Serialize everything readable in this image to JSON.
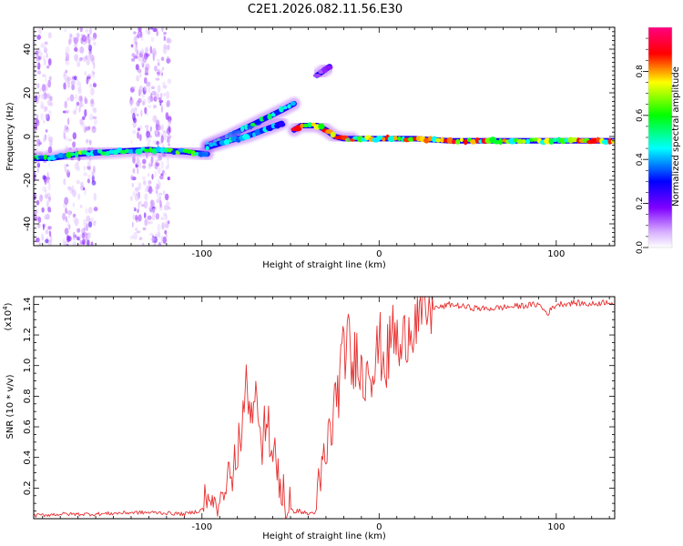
{
  "title": "C2E1.2026.082.11.56.E30",
  "chart_data": [
    {
      "type": "heatmap",
      "title": "C2E1.2026.082.11.56.E30",
      "xlabel": "Height of straight line (km)",
      "ylabel": "Frequency (Hz)",
      "xlim": [
        -195,
        133
      ],
      "ylim": [
        -50,
        50
      ],
      "x_ticks": [
        -100,
        0,
        100
      ],
      "y_ticks": [
        -40,
        -20,
        0,
        20,
        40
      ],
      "colorbar": {
        "label": "Normalized spectral amplitude",
        "range": [
          0,
          1
        ],
        "ticks": [
          "0.0",
          "0.2",
          "0.4",
          "0.6",
          "0.8"
        ],
        "tick_values": [
          0,
          0.2,
          0.4,
          0.6,
          0.8
        ],
        "colormap": [
          "#ffffff",
          "#8000ff",
          "#0000ff",
          "#00ffff",
          "#00ff00",
          "#ffff00",
          "#ff0000",
          "#ff0080"
        ]
      },
      "noise_bands_km": [
        [
          -195,
          -185
        ],
        [
          -178,
          -160
        ],
        [
          -140,
          -118
        ]
      ],
      "ridge_segments": [
        {
          "name": "horizontal-trace",
          "x": [
            -195,
            -185,
            -170,
            -150,
            -130,
            -110,
            -97
          ],
          "freq_hz": [
            -10,
            -10,
            -8,
            -7,
            -6,
            -7,
            -8
          ],
          "amplitude": 0.6
        },
        {
          "name": "upper-ascending-branch",
          "x": [
            -97,
            -85,
            -75,
            -65,
            -55,
            -48
          ],
          "freq_hz": [
            -4,
            0,
            4,
            8,
            12,
            15
          ],
          "amplitude": 0.5
        },
        {
          "name": "lower-ascending-branch",
          "x": [
            -97,
            -85,
            -75,
            -65,
            -55
          ],
          "freq_hz": [
            -5,
            -2,
            0,
            3,
            6
          ],
          "amplitude": 0.45
        },
        {
          "name": "faint-upper-streak",
          "x": [
            -35,
            -28
          ],
          "freq_hz": [
            28,
            32
          ],
          "amplitude": 0.15
        },
        {
          "name": "bump",
          "x": [
            -48,
            -44,
            -40,
            -35,
            -30,
            -25,
            -20,
            -15
          ],
          "freq_hz": [
            3,
            5,
            5,
            5,
            3,
            0,
            -1,
            -1
          ],
          "amplitude": 0.9
        },
        {
          "name": "flat-trace",
          "x": [
            -15,
            0,
            20,
            40,
            60,
            80,
            100,
            120,
            133
          ],
          "freq_hz": [
            -1,
            -1,
            -1,
            -2,
            -2,
            -2,
            -2,
            -2,
            -2
          ],
          "amplitude": 0.8
        }
      ]
    },
    {
      "type": "line",
      "xlabel": "Height of straight line (km)",
      "ylabel": "SNR (10 * v/v)",
      "y_multiplier_label": "(x10",
      "y_multiplier_exp": "4",
      "y_multiplier_close": ")",
      "xlim": [
        -195,
        133
      ],
      "ylim": [
        0,
        1.45
      ],
      "x_ticks": [
        -100,
        0,
        100
      ],
      "y_ticks": [
        0.2,
        0.4,
        0.6,
        0.8,
        1.0,
        1.2,
        1.4
      ],
      "y_tick_labels": [
        "0.2",
        "0.4",
        "0.6",
        "0.8",
        "1.0",
        "1.2",
        "1.4"
      ],
      "color": "#e83030",
      "series": [
        {
          "name": "SNR",
          "x": [
            -195,
            -180,
            -160,
            -140,
            -125,
            -110,
            -102,
            -95,
            -88,
            -82,
            -78,
            -75,
            -72,
            -69,
            -66,
            -63,
            -60,
            -57,
            -54,
            -50,
            -45,
            -40,
            -35,
            -33,
            -30,
            -27,
            -24,
            -21,
            -18,
            -15,
            -12,
            -9,
            -6,
            -3,
            0,
            4,
            8,
            12,
            16,
            20,
            25,
            30,
            35,
            40,
            50,
            60,
            70,
            80,
            90,
            95,
            100,
            110,
            120,
            130,
            133
          ],
          "y": [
            0.02,
            0.03,
            0.03,
            0.04,
            0.04,
            0.03,
            0.05,
            0.08,
            0.12,
            0.25,
            0.45,
            0.85,
            0.55,
            0.75,
            0.45,
            0.6,
            0.35,
            0.25,
            0.08,
            0.05,
            0.05,
            0.03,
            0.05,
            0.25,
            0.4,
            0.6,
            0.8,
            1.0,
            1.2,
            0.95,
            1.15,
            0.85,
            1.1,
            0.95,
            1.15,
            1.0,
            1.25,
            1.05,
            1.25,
            1.3,
            1.35,
            1.38,
            1.38,
            1.4,
            1.38,
            1.37,
            1.38,
            1.39,
            1.4,
            1.34,
            1.4,
            1.41,
            1.4,
            1.42,
            1.4
          ]
        }
      ]
    }
  ]
}
